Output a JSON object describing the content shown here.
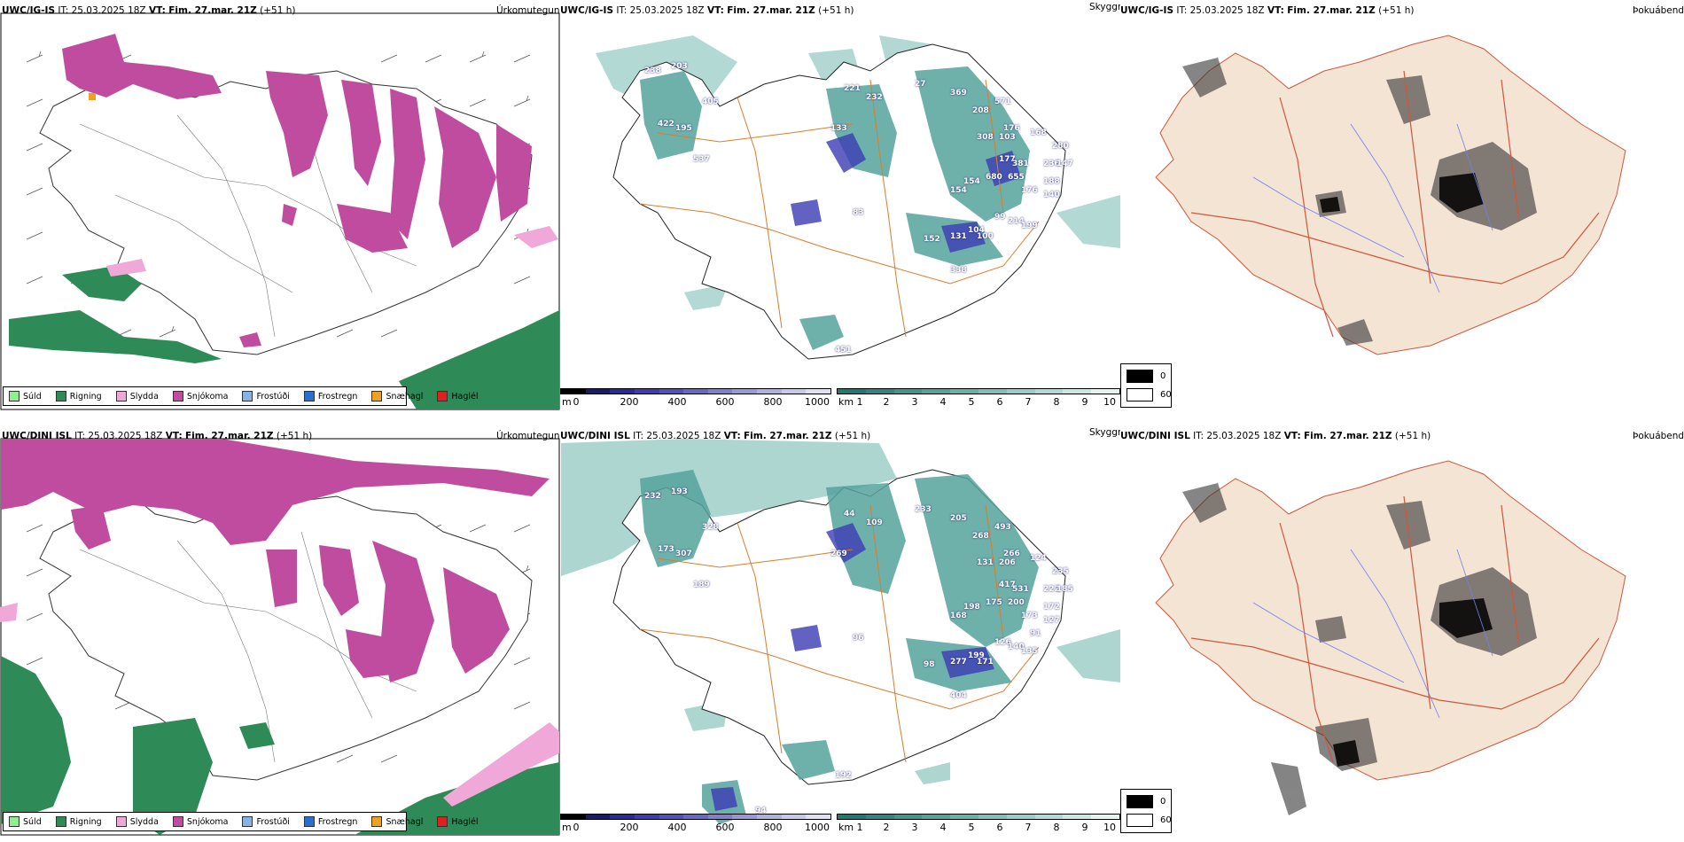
{
  "rows": [
    {
      "model": "UWC/IG-IS",
      "it_label": "IT:",
      "it_value": "25.03.2025 18Z",
      "vt_label": "VT:",
      "vt_value": "Fim. 27.mar. 21Z",
      "lead": "(+51 h)"
    },
    {
      "model": "UWC/DINI ISL",
      "it_label": "IT:",
      "it_value": "25.03.2025 18Z",
      "vt_label": "VT:",
      "vt_value": "Fim. 27.mar. 21Z",
      "lead": "(+51 h)"
    }
  ],
  "panel_titles": {
    "precip_type": "Úrkomutegund",
    "visibility": "Skyggni",
    "fog_probability": "Þokuábendi"
  },
  "precip_legend": [
    {
      "label": "Súld",
      "color": "#90ee90"
    },
    {
      "label": "Rigning",
      "color": "#2e8b57"
    },
    {
      "label": "Slydda",
      "color": "#f0a8d8"
    },
    {
      "label": "Snjókoma",
      "color": "#c04ca0"
    },
    {
      "label": "Frostúði",
      "color": "#87b4e8"
    },
    {
      "label": "Frostregn",
      "color": "#2a6fc9"
    },
    {
      "label": "Snæhagl",
      "color": "#f0a020"
    },
    {
      "label": "Haglél",
      "color": "#e02020"
    }
  ],
  "visibility_scale_m": {
    "unit": "m",
    "ticks": [
      "0",
      "200",
      "400",
      "600",
      "800",
      "1000"
    ],
    "colors": [
      "#000000",
      "#1a1a6e",
      "#2a2a9a",
      "#3c3cb4",
      "#5050c0",
      "#6868c8",
      "#8080d0",
      "#9898d8",
      "#b0b0e0",
      "#c8c8ec",
      "#e0e0f4"
    ]
  },
  "visibility_scale_km": {
    "unit": "km",
    "ticks": [
      "1",
      "2",
      "3",
      "4",
      "5",
      "6",
      "7",
      "8",
      "9",
      "10"
    ],
    "colors": [
      "#1f7a72",
      "#2f8880",
      "#41968e",
      "#55a39c",
      "#6bb1aa",
      "#82beb8",
      "#9accc6",
      "#b3d9d4",
      "#cde6e2",
      "#e6f3f1"
    ]
  },
  "cloud_legend": [
    {
      "label": "0",
      "color": "#000000"
    },
    {
      "label": "60",
      "color": "#ffffff"
    }
  ],
  "vis_values_top": [
    "238",
    "203",
    "405",
    "422",
    "195",
    "537",
    "133",
    "221",
    "232",
    "27",
    "369",
    "208",
    "571",
    "176",
    "308",
    "103",
    "168",
    "280",
    "177",
    "381",
    "680",
    "655",
    "236",
    "147",
    "154",
    "188",
    "154",
    "176",
    "140",
    "83",
    "99",
    "214",
    "199",
    "104",
    "152",
    "131",
    "100",
    "338",
    "451"
  ],
  "vis_values_bottom": [
    "232",
    "193",
    "328",
    "173",
    "307",
    "189",
    "269",
    "44",
    "109",
    "233",
    "205",
    "268",
    "493",
    "266",
    "131",
    "206",
    "124",
    "235",
    "417",
    "531",
    "175",
    "200",
    "222",
    "185",
    "198",
    "172",
    "168",
    "173",
    "127",
    "96",
    "126",
    "140",
    "135",
    "199",
    "98",
    "277",
    "171",
    "404",
    "192",
    "91",
    "94"
  ]
}
